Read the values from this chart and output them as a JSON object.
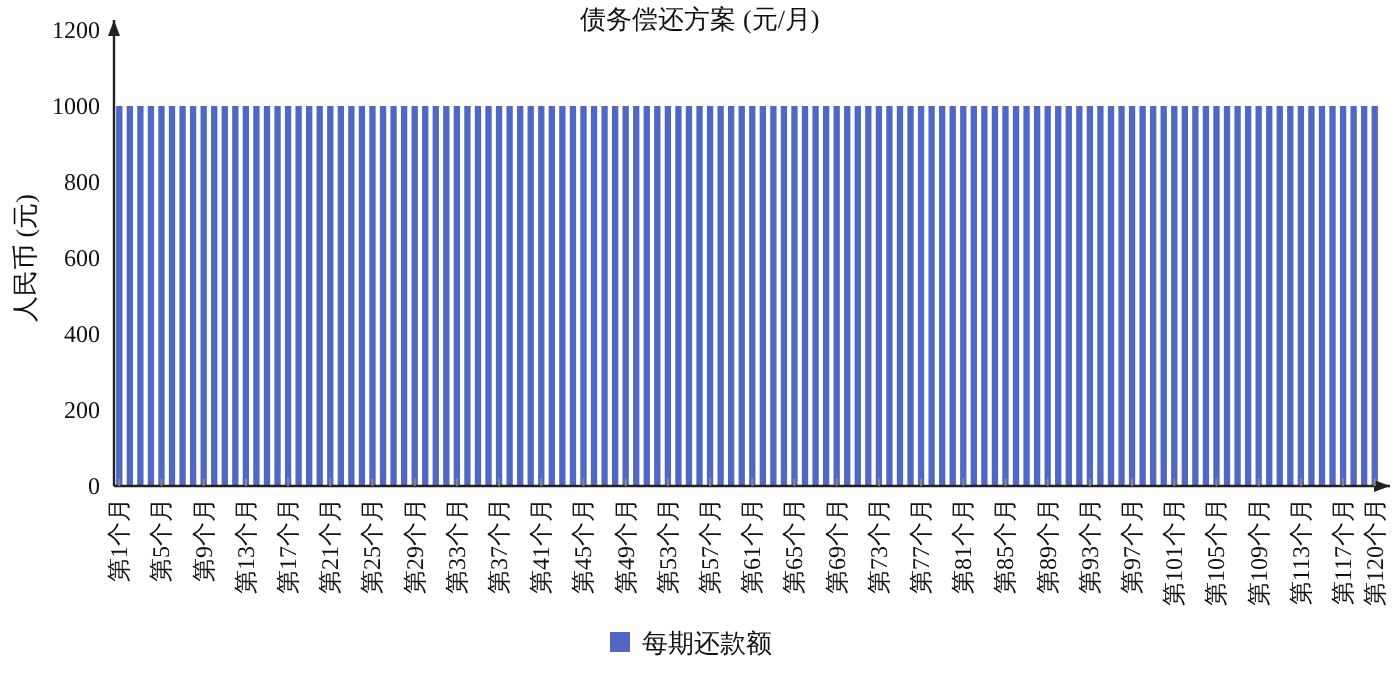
{
  "chart_data": {
    "type": "bar",
    "title": "债务偿还方案 (元/月)",
    "ylabel": "人民币 (元)",
    "categories": [
      "第1个月",
      null,
      null,
      null,
      "第5个月",
      null,
      null,
      null,
      "第9个月",
      null,
      null,
      null,
      "第13个月",
      null,
      null,
      null,
      "第17个月",
      null,
      null,
      null,
      "第21个月",
      null,
      null,
      null,
      "第25个月",
      null,
      null,
      null,
      "第29个月",
      null,
      null,
      null,
      "第33个月",
      null,
      null,
      null,
      "第37个月",
      null,
      null,
      null,
      "第41个月",
      null,
      null,
      null,
      "第45个月",
      null,
      null,
      null,
      "第49个月",
      null,
      null,
      null,
      "第53个月",
      null,
      null,
      null,
      "第57个月",
      null,
      null,
      null,
      "第61个月",
      null,
      null,
      null,
      "第65个月",
      null,
      null,
      null,
      "第69个月",
      null,
      null,
      null,
      "第73个月",
      null,
      null,
      null,
      "第77个月",
      null,
      null,
      null,
      "第81个月",
      null,
      null,
      null,
      "第85个月",
      null,
      null,
      null,
      "第89个月",
      null,
      null,
      null,
      "第93个月",
      null,
      null,
      null,
      "第97个月",
      null,
      null,
      null,
      "第101个月",
      null,
      null,
      null,
      "第105个月",
      null,
      null,
      null,
      "第109个月",
      null,
      null,
      null,
      "第113个月",
      null,
      null,
      null,
      "第117个月",
      null,
      null,
      "第120个月"
    ],
    "series": [
      {
        "name": "每期还款额",
        "color": "#5068c4",
        "values": [
          1000,
          1000,
          1000,
          1000,
          1000,
          1000,
          1000,
          1000,
          1000,
          1000,
          1000,
          1000,
          1000,
          1000,
          1000,
          1000,
          1000,
          1000,
          1000,
          1000,
          1000,
          1000,
          1000,
          1000,
          1000,
          1000,
          1000,
          1000,
          1000,
          1000,
          1000,
          1000,
          1000,
          1000,
          1000,
          1000,
          1000,
          1000,
          1000,
          1000,
          1000,
          1000,
          1000,
          1000,
          1000,
          1000,
          1000,
          1000,
          1000,
          1000,
          1000,
          1000,
          1000,
          1000,
          1000,
          1000,
          1000,
          1000,
          1000,
          1000,
          1000,
          1000,
          1000,
          1000,
          1000,
          1000,
          1000,
          1000,
          1000,
          1000,
          1000,
          1000,
          1000,
          1000,
          1000,
          1000,
          1000,
          1000,
          1000,
          1000,
          1000,
          1000,
          1000,
          1000,
          1000,
          1000,
          1000,
          1000,
          1000,
          1000,
          1000,
          1000,
          1000,
          1000,
          1000,
          1000,
          1000,
          1000,
          1000,
          1000,
          1000,
          1000,
          1000,
          1000,
          1000,
          1000,
          1000,
          1000,
          1000,
          1000,
          1000,
          1000,
          1000,
          1000,
          1000,
          1000,
          1000,
          1000,
          1000,
          1000
        ]
      }
    ],
    "ylim": [
      0,
      1200
    ],
    "yticks": [
      0,
      200,
      400,
      600,
      800,
      1000,
      1200
    ],
    "grid": false,
    "legend": "bottom"
  }
}
